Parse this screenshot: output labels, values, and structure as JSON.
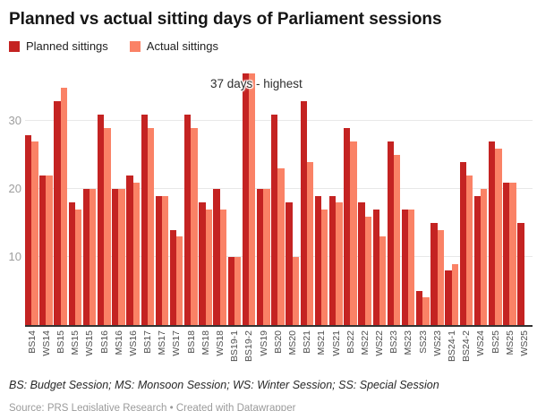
{
  "header": {
    "title": "Planned vs actual sitting days of Parliament sessions"
  },
  "legend": [
    {
      "label": "Planned sittings",
      "color": "#c42322"
    },
    {
      "label": "Actual sittings",
      "color": "#fa8266"
    }
  ],
  "chart_data": {
    "type": "bar",
    "title": "Planned vs actual sitting days of Parliament sessions",
    "categories": [
      "BS14",
      "WS14",
      "BS15",
      "MS15",
      "WS15",
      "BS16",
      "MS16",
      "WS16",
      "BS17",
      "MS17",
      "WS17",
      "BS18",
      "MS18",
      "WS18",
      "BS19-1",
      "BS19-2",
      "WS19",
      "BS20",
      "MS20",
      "BS21",
      "MS21",
      "WS21",
      "BS22",
      "MS22",
      "WS22",
      "BS23",
      "MS23",
      "SS23",
      "WS23",
      "BS24-1",
      "BS24-2",
      "WS24",
      "BS25",
      "MS25",
      "WS25"
    ],
    "series": [
      {
        "name": "Planned sittings",
        "color": "#c42322",
        "values": [
          28,
          22,
          33,
          18,
          20,
          31,
          20,
          22,
          31,
          19,
          14,
          31,
          18,
          20,
          10,
          37,
          20,
          31,
          18,
          33,
          19,
          19,
          29,
          18,
          17,
          27,
          17,
          5,
          15,
          8,
          24,
          19,
          27,
          21,
          15
        ]
      },
      {
        "name": "Actual sittings",
        "color": "#fa8266",
        "values": [
          27,
          22,
          35,
          17,
          20,
          29,
          20,
          21,
          29,
          19,
          13,
          29,
          17,
          17,
          10,
          37,
          20,
          23,
          10,
          24,
          17,
          18,
          27,
          16,
          13,
          25,
          17,
          4,
          14,
          9,
          22,
          20,
          26,
          21,
          null
        ]
      }
    ],
    "xlabel": "",
    "ylabel": "",
    "ylim": [
      0,
      38
    ],
    "yticks": [
      10,
      20,
      30
    ],
    "grid": true,
    "legend_position": "top",
    "annotations": [
      {
        "text": "37 days - highest",
        "target_category": "BS19-2",
        "value": 37
      }
    ]
  },
  "colors": {
    "planned": "#c42322",
    "actual": "#fa8266",
    "gridline": "#e8e8e8",
    "baseline": "#333333"
  },
  "footer": {
    "note": "BS: Budget Session; MS: Monsoon Session; WS: Winter Session; SS: Special Session",
    "source": "Source: PRS Legislative Research • Created with Datawrapper"
  }
}
